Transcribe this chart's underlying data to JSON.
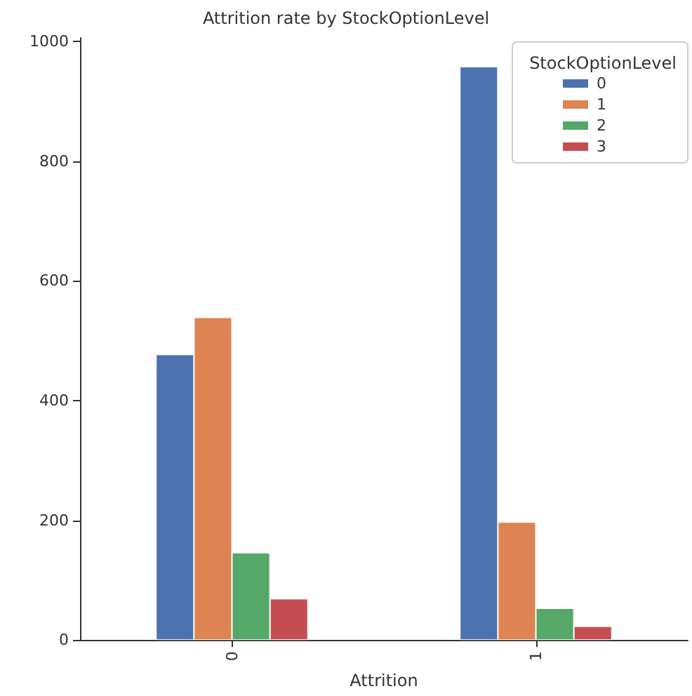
{
  "chart_data": {
    "type": "bar",
    "title": "Attrition rate by StockOptionLevel",
    "xlabel": "Attrition",
    "legend_title": "StockOptionLevel",
    "categories": [
      "0",
      "1"
    ],
    "series": [
      {
        "name": "0",
        "color": "#4c72b0",
        "values": [
          477,
          958
        ]
      },
      {
        "name": "1",
        "color": "#dd8452",
        "values": [
          539,
          197
        ]
      },
      {
        "name": "2",
        "color": "#55a868",
        "values": [
          146,
          53
        ]
      },
      {
        "name": "3",
        "color": "#c44e52",
        "values": [
          69,
          23
        ]
      }
    ],
    "ylim": [
      0,
      1006
    ],
    "yticks": [
      0,
      200,
      400,
      600,
      800,
      1000
    ],
    "grid": false,
    "legend": "top right"
  }
}
